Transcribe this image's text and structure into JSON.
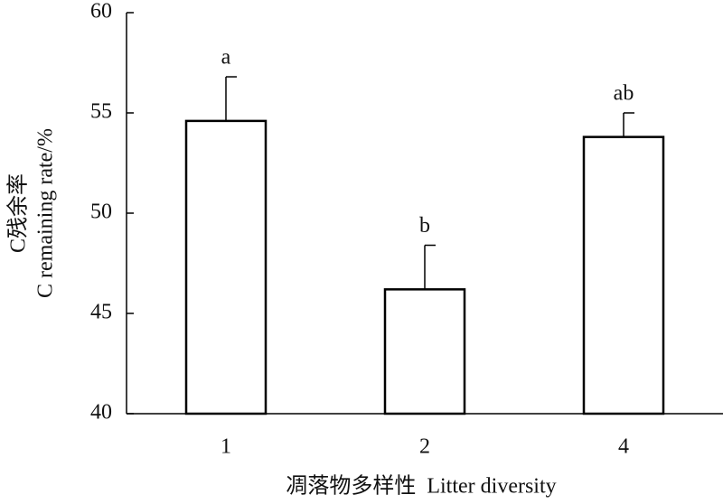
{
  "chart_data": {
    "type": "bar",
    "categories": [
      "1",
      "2",
      "4"
    ],
    "values": [
      54.6,
      46.2,
      53.8
    ],
    "errors": [
      2.2,
      2.2,
      1.2
    ],
    "labels": [
      "a",
      "b",
      "ab"
    ],
    "color": "#ffffff",
    "ylim": [
      40,
      60
    ],
    "yticks": [
      40,
      45,
      50,
      55,
      60
    ],
    "ylabel": [
      "C残余率",
      "C remaining rate/%"
    ],
    "xlabel": "凋落物多样性  Litter diversity"
  }
}
